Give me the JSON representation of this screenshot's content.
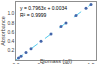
{
  "chart_data": {
    "type": "scatter",
    "xlabel": "Biomass (g/l)",
    "ylabel": "Absorbance",
    "annotations": [
      "y = 0.7963x + 0.0034",
      "R² = 0.9999"
    ],
    "xlim": [
      0,
      1.6
    ],
    "ylim": [
      0,
      1.25
    ],
    "xticks": [
      {
        "value": 0,
        "label": "0.0"
      },
      0.5,
      {
        "value": 1.0,
        "label": "1.0"
      },
      1.5
    ],
    "yticks": [
      0.2,
      0.4,
      0.6,
      0.8,
      {
        "value": 1.0,
        "label": "1.0"
      }
    ],
    "grid": false,
    "series": [
      {
        "type": "line",
        "color": "#55ccee",
        "line_style": "dashed",
        "x": [
          0.0,
          0.1,
          0.2,
          0.3,
          0.4,
          0.5,
          0.6,
          0.7,
          0.8,
          0.9,
          1.0,
          1.1,
          1.2,
          1.3,
          1.4,
          1.5
        ],
        "values": [
          0.003,
          0.082,
          0.162,
          0.242,
          0.321,
          0.401,
          0.481,
          0.56,
          0.64,
          0.719,
          0.799,
          0.879,
          0.958,
          1.038,
          1.118,
          1.197
        ]
      },
      {
        "type": "scatter",
        "color": "#4466aa",
        "marker": "circle",
        "x": [
          0.05,
          0.1,
          0.2,
          0.3,
          0.5,
          0.7,
          0.9,
          1.0,
          1.2,
          1.4,
          1.5
        ],
        "values": [
          0.045,
          0.082,
          0.163,
          0.243,
          0.402,
          0.561,
          0.72,
          0.8,
          0.96,
          1.115,
          1.197
        ]
      }
    ]
  }
}
